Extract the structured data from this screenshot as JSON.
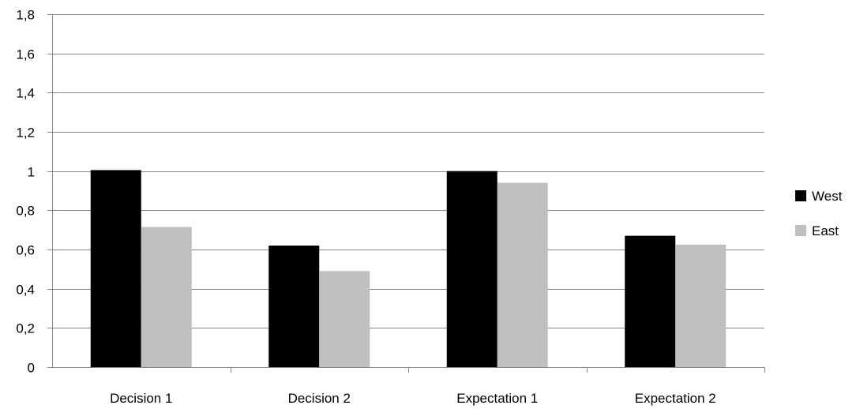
{
  "chart_data": {
    "type": "bar",
    "categories": [
      "Decision 1",
      "Decision 2",
      "Expectation 1",
      "Expectation 2"
    ],
    "series": [
      {
        "name": "West",
        "values": [
          1.005,
          0.62,
          1.0,
          0.67
        ],
        "color": "#000000"
      },
      {
        "name": "East",
        "values": [
          0.715,
          0.49,
          0.94,
          0.625
        ],
        "color": "#bfbfbf"
      }
    ],
    "y_ticks": [
      "0",
      "0,2",
      "0,4",
      "0,6",
      "0,8",
      "1",
      "1,2",
      "1,4",
      "1,6",
      "1,8"
    ],
    "ylim": [
      0,
      1.8
    ],
    "grid": true,
    "gridline_color": "#868686",
    "legend_position": "right"
  }
}
